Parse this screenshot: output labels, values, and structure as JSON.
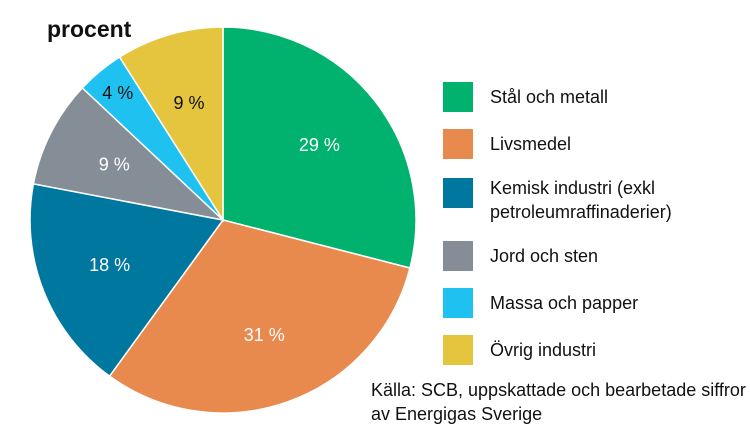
{
  "chart_data": {
    "type": "pie",
    "unit_label": "procent",
    "slices": [
      {
        "label": "Stål och metall",
        "value": 29,
        "value_label": "29 %",
        "color": "#00b26e",
        "label_color": "#ffffff"
      },
      {
        "label": "Livsmedel",
        "value": 31,
        "value_label": "31 %",
        "color": "#e8894d",
        "label_color": "#ffffff"
      },
      {
        "label": "Kemisk industri (exkl petroleumraffinaderier)",
        "value": 18,
        "value_label": "18 %",
        "color": "#00779f",
        "label_color": "#ffffff"
      },
      {
        "label": "Jord och sten",
        "value": 9,
        "value_label": "9 %",
        "color": "#858d96",
        "label_color": "#ffffff"
      },
      {
        "label": "Massa och papper",
        "value": 4,
        "value_label": "4 %",
        "color": "#1fc1f0",
        "label_color": "#111111"
      },
      {
        "label": "Övrig industri",
        "value": 9,
        "value_label": "9 %",
        "color": "#e5c53e",
        "label_color": "#111111"
      }
    ],
    "legend_placement": "right",
    "source": "Källa: SCB, uppskattade och bearbetade siffror av Energigas Sverige"
  }
}
